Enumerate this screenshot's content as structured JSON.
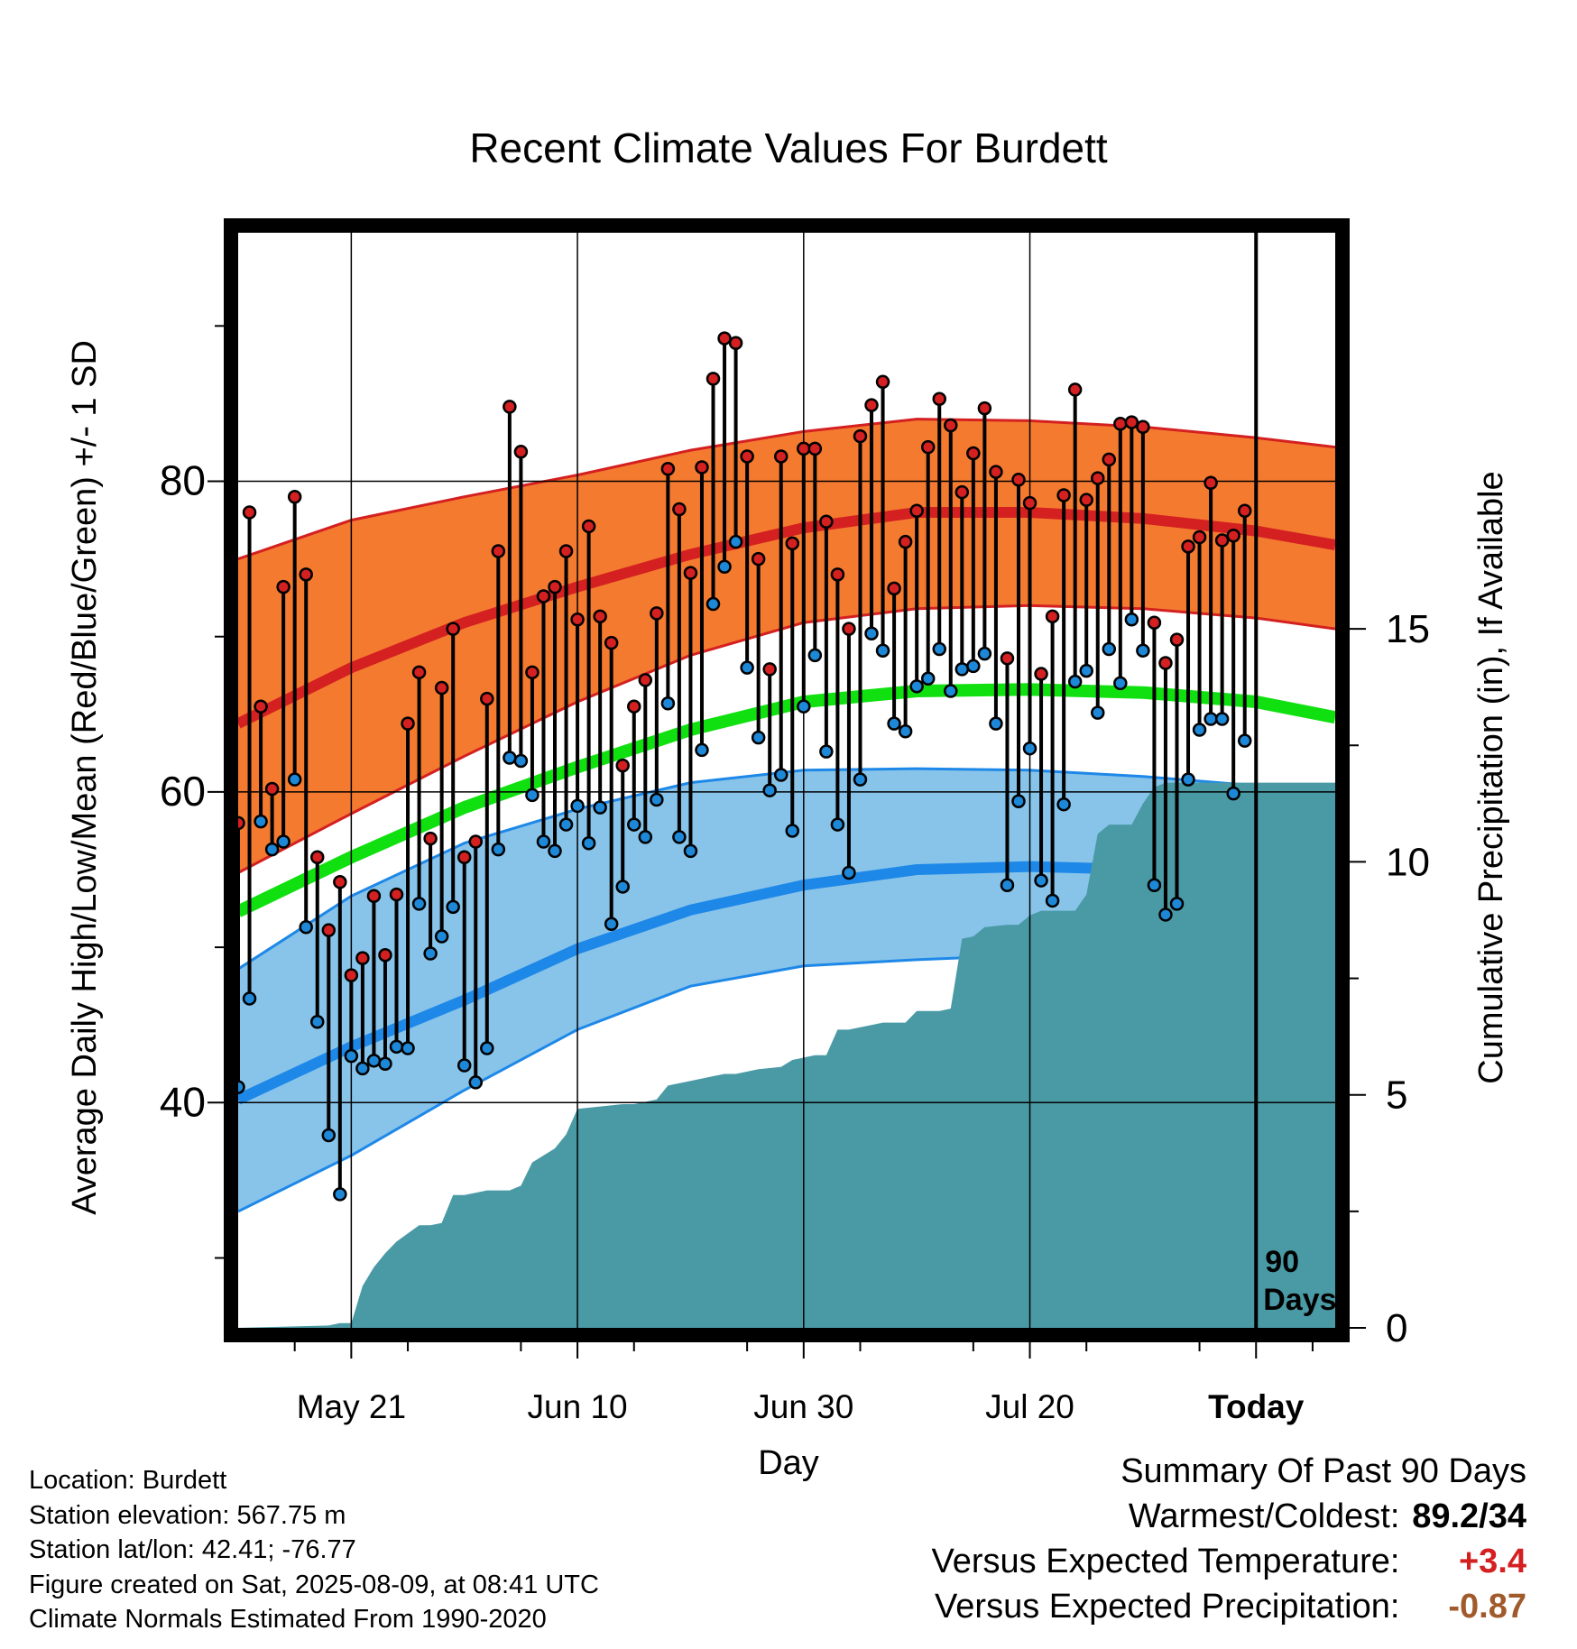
{
  "chart_data": {
    "type": "line",
    "title": "Recent Climate Values For Burdett",
    "xlabel": "Day",
    "ylabel": "Average Daily High/Low/Mean (Red/Blue/Green) +/- 1 SD",
    "y2label": "Cumulative Precipitation (in), If Available",
    "x_day_range": [
      -88,
      9
    ],
    "xticks": [
      {
        "day": -78,
        "label": "May 21"
      },
      {
        "day": -58,
        "label": "Jun 10"
      },
      {
        "day": -38,
        "label": "Jun 30"
      },
      {
        "day": -18,
        "label": "Jul 20"
      },
      {
        "day": 2,
        "label": "Today"
      }
    ],
    "ylim": [
      25.5,
      96
    ],
    "yticks": [
      40,
      60,
      80
    ],
    "y2lim": [
      0,
      23.5
    ],
    "y2ticks": [
      0,
      5,
      10,
      15
    ],
    "today_day": 2,
    "today_marker_label": [
      "90",
      "Days"
    ],
    "normals": {
      "day": [
        -88,
        -78,
        -68,
        -58,
        -48,
        -38,
        -28,
        -18,
        -8,
        2,
        9
      ],
      "high_mean": [
        64.4,
        68.0,
        70.9,
        73.2,
        75.3,
        77.0,
        78.0,
        78.0,
        77.6,
        76.8,
        75.9
      ],
      "high_plus_sd": [
        75.0,
        77.5,
        79.0,
        80.4,
        82.0,
        83.2,
        84.0,
        83.9,
        83.5,
        82.8,
        82.2
      ],
      "high_minus_sd": [
        54.8,
        58.6,
        62.3,
        65.8,
        68.8,
        70.9,
        71.8,
        72.0,
        71.8,
        71.2,
        70.5
      ],
      "mean": [
        52.3,
        55.8,
        59.0,
        61.6,
        64.0,
        65.8,
        66.5,
        66.6,
        66.4,
        65.8,
        64.8
      ],
      "low_mean": [
        40.2,
        43.6,
        46.6,
        49.9,
        52.4,
        54.0,
        55.0,
        55.2,
        55.0,
        54.5,
        53.6
      ],
      "low_plus_sd": [
        48.6,
        53.3,
        56.7,
        58.9,
        60.6,
        61.4,
        61.5,
        61.4,
        61.0,
        60.4,
        59.8
      ],
      "low_minus_sd": [
        33.0,
        36.6,
        40.8,
        44.7,
        47.5,
        48.8,
        49.2,
        49.5,
        49.4,
        48.9,
        47.8
      ]
    },
    "series": [
      {
        "name": "Daily High",
        "color": "#d42020",
        "values": [
          58,
          78,
          65.5,
          60.2,
          73.2,
          79,
          74,
          55.8,
          51.1,
          54.2,
          48.2,
          49.3,
          53.3,
          49.5,
          53.4,
          64.4,
          67.7,
          57,
          66.7,
          70.5,
          55.8,
          56.8,
          66,
          75.5,
          84.8,
          81.9,
          67.7,
          72.6,
          73.2,
          75.5,
          71.1,
          77.1,
          71.3,
          69.6,
          61.7,
          65.5,
          67.2,
          71.5,
          80.8,
          78.2,
          74.1,
          80.9,
          86.6,
          89.2,
          88.9,
          81.6,
          75,
          67.9,
          81.6,
          76,
          82.1,
          82.1,
          77.4,
          74,
          70.5,
          82.9,
          84.9,
          86.4,
          73.1,
          76.1,
          78.1,
          82.2,
          85.3,
          83.6,
          79.3,
          81.8,
          84.7,
          80.6,
          68.6,
          80.1,
          78.6,
          67.6,
          71.3,
          79.1,
          85.9,
          78.8,
          80.2,
          81.4,
          83.7,
          83.8,
          83.5,
          70.9,
          68.3,
          69.8,
          75.8,
          76.4,
          79.9,
          76.2,
          76.5,
          78.1
        ]
      },
      {
        "name": "Daily Low",
        "color": "#1e88d8",
        "values": [
          41,
          46.7,
          58.1,
          56.3,
          56.8,
          60.8,
          51.3,
          45.2,
          37.9,
          34.1,
          43,
          42.2,
          42.7,
          42.5,
          43.6,
          43.5,
          52.8,
          49.6,
          50.7,
          52.6,
          42.4,
          41.3,
          43.5,
          56.3,
          62.2,
          62,
          59.8,
          56.8,
          56.2,
          57.9,
          59.1,
          56.7,
          59,
          51.5,
          53.9,
          57.9,
          57.1,
          59.5,
          65.7,
          57.1,
          56.2,
          62.7,
          72.1,
          74.5,
          76.1,
          68,
          63.5,
          60.1,
          61.1,
          57.5,
          65.5,
          68.8,
          62.6,
          57.9,
          54.8,
          60.8,
          70.2,
          69.1,
          64.4,
          63.9,
          66.8,
          67.3,
          69.2,
          66.5,
          67.9,
          68.1,
          68.9,
          64.4,
          54,
          59.4,
          62.8,
          54.3,
          53,
          59.2,
          67.1,
          67.8,
          65.1,
          69.2,
          67,
          71.1,
          69.1,
          54,
          52.1,
          52.8,
          60.8,
          64,
          64.7,
          64.7,
          59.9,
          63.3
        ]
      }
    ],
    "precipitation": {
      "name": "Cumulative Precipitation",
      "color": "#4a9aa6",
      "days": [
        -88,
        -80,
        -79,
        -78,
        -77,
        -76,
        -75,
        -74,
        -72,
        -71,
        -70,
        -69,
        -68,
        -67,
        -66,
        -65,
        -64,
        -63,
        -62,
        -60,
        -59,
        -58,
        -56,
        -54,
        -53,
        -51,
        -50,
        -48,
        -46,
        -45,
        -44,
        -43,
        -42,
        -40,
        -39,
        -38,
        -37,
        -36,
        -35,
        -34,
        -32,
        -31,
        -29,
        -28,
        -26,
        -25,
        -24,
        -23,
        -22,
        -20,
        -19,
        -18,
        -17,
        -15,
        -14,
        -13,
        -12,
        -11,
        -9,
        -8,
        -7,
        -6,
        -5,
        -4,
        9
      ],
      "values": [
        0,
        0.05,
        0.1,
        0.1,
        0.9,
        1.3,
        1.6,
        1.85,
        2.2,
        2.2,
        2.25,
        2.85,
        2.85,
        2.9,
        2.95,
        2.95,
        2.95,
        3.05,
        3.55,
        3.85,
        4.15,
        4.7,
        4.75,
        4.8,
        4.8,
        4.9,
        5.2,
        5.3,
        5.4,
        5.45,
        5.45,
        5.5,
        5.55,
        5.6,
        5.75,
        5.8,
        5.85,
        5.85,
        6.4,
        6.4,
        6.5,
        6.55,
        6.55,
        6.8,
        6.8,
        6.85,
        8.35,
        8.4,
        8.6,
        8.65,
        8.65,
        8.85,
        8.95,
        8.95,
        8.95,
        9.3,
        10.6,
        10.8,
        10.8,
        11.25,
        11.6,
        11.7,
        11.7,
        11.7,
        11.7
      ]
    }
  },
  "footer": {
    "lines": [
      "Location: Burdett",
      "Station elevation: 567.75 m",
      "Station lat/lon: 42.41; -76.77",
      "Figure created on Sat, 2025-08-09, at 08:41 UTC",
      "Climate Normals Estimated From 1990-2020"
    ]
  },
  "summary": {
    "title": "Summary Of Past 90 Days",
    "warmest_coldest_label": "Warmest/Coldest:",
    "warmest_coldest_value": "89.2/34",
    "temp_label": "Versus Expected Temperature:",
    "temp_value": "+3.4",
    "temp_color": "#d42020",
    "precip_label": "Versus Expected Precipitation:",
    "precip_value": "-0.87",
    "precip_color": "#a05a2c"
  }
}
